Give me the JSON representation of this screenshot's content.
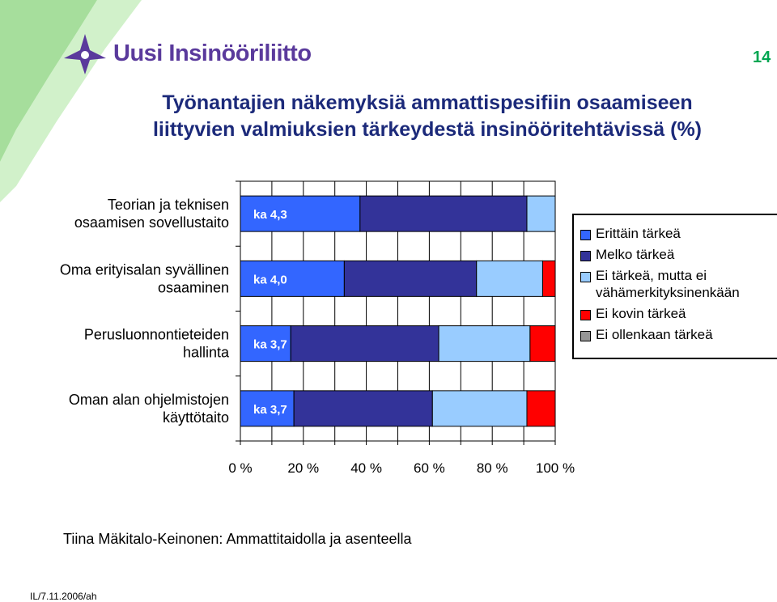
{
  "header": {
    "logo_text": "Uusi Insinööriliitto",
    "page_number": "14",
    "title_lines": [
      "Työnantajien näkemyksiä ammattispesifiin osaamiseen",
      "liittyvien valmiuksien tärkeydestä insinööritehtävissä (%)"
    ]
  },
  "footer": {
    "author": "Tiina Mäkitalo-Keinonen: Ammattitaidolla ja asenteella",
    "date": "IL/7.11.2006/ah"
  },
  "colors": {
    "green_decor": "#5cc24a",
    "purple_brand": "#5a3a9c",
    "title_blue": "#1c2a7a",
    "page_number_green": "#00a651"
  },
  "chart_data": {
    "type": "bar",
    "orientation": "horizontal",
    "stacked": true,
    "categories": [
      {
        "lines": [
          "Teorian ja teknisen",
          "osaamisen sovellustaito"
        ],
        "avg_label": "ka 4,3"
      },
      {
        "lines": [
          "Oma erityisalan syvällinen",
          "osaaminen"
        ],
        "avg_label": "ka 4,0"
      },
      {
        "lines": [
          "Perusluonnontieteiden",
          "hallinta"
        ],
        "avg_label": "ka 3,7"
      },
      {
        "lines": [
          "Oman alan ohjelmistojen",
          "käyttötaito"
        ],
        "avg_label": "ka 3,7"
      }
    ],
    "series": [
      {
        "name": "Erittäin tärkeä",
        "color": "#3366ff",
        "values": [
          38,
          33,
          16,
          17
        ]
      },
      {
        "name": "Melko tärkeä",
        "color": "#333399",
        "values": [
          53,
          42,
          47,
          44
        ]
      },
      {
        "name": "Ei tärkeä, mutta ei vähämerkityksinenkään",
        "color": "#99ccff",
        "values": [
          9,
          21,
          29,
          30
        ]
      },
      {
        "name": "Ei kovin tärkeä",
        "color": "#ff0000",
        "values": [
          0,
          4,
          8,
          9
        ]
      },
      {
        "name": "Ei ollenkaan tärkeä",
        "color": "#969696",
        "values": [
          0,
          0,
          0,
          0
        ]
      }
    ],
    "legend_lines": [
      [
        "Erittäin tärkeä"
      ],
      [
        "Melko tärkeä"
      ],
      [
        "Ei tärkeä, mutta ei",
        "vähämerkityksinenkään"
      ],
      [
        "Ei kovin tärkeä"
      ],
      [
        "Ei ollenkaan tärkeä"
      ]
    ],
    "xticks": [
      "0 %",
      "20 %",
      "40 %",
      "60 %",
      "80 %",
      "100 %"
    ],
    "xlim": [
      0,
      100
    ],
    "grid": "vertical",
    "legend_position": "right"
  }
}
